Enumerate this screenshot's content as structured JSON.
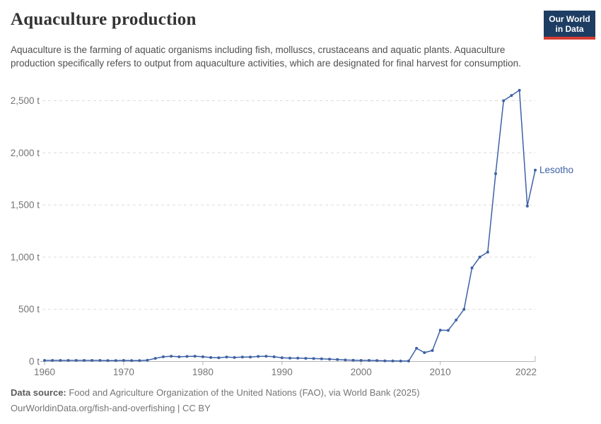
{
  "header": {
    "title": "Aquaculture production",
    "subtitle": "Aquaculture is the farming of aquatic organisms including fish, molluscs, crustaceans and aquatic plants. Aquaculture production specifically refers to output from aquaculture activities, which are designated for final harvest for consumption.",
    "logo": {
      "line1": "Our World",
      "line2": "in Data",
      "bg_color": "#1d3d63",
      "accent_color": "#d73c34"
    }
  },
  "chart_data": {
    "type": "line",
    "title": "Aquaculture production",
    "unit": "t",
    "xlabel": "",
    "ylabel": "",
    "xlim": [
      1960,
      2022
    ],
    "ylim": [
      0,
      2600
    ],
    "grid": "horizontal-dashed",
    "legend_position": "end-of-line",
    "x_ticks": [
      1960,
      1970,
      1980,
      1990,
      2000,
      2010,
      2022
    ],
    "y_ticks": [
      0,
      500,
      1000,
      1500,
      2000,
      2500
    ],
    "y_tick_suffix": " t",
    "series": [
      {
        "name": "Lesotho",
        "color": "#3d61a5",
        "x": [
          1960,
          1961,
          1962,
          1963,
          1964,
          1965,
          1966,
          1967,
          1968,
          1969,
          1970,
          1971,
          1972,
          1973,
          1974,
          1975,
          1976,
          1977,
          1978,
          1979,
          1980,
          1981,
          1982,
          1983,
          1984,
          1985,
          1986,
          1987,
          1988,
          1989,
          1990,
          1991,
          1992,
          1993,
          1994,
          1995,
          1996,
          1997,
          1998,
          1999,
          2000,
          2001,
          2002,
          2003,
          2004,
          2005,
          2006,
          2007,
          2008,
          2009,
          2010,
          2011,
          2012,
          2013,
          2014,
          2015,
          2016,
          2017,
          2018,
          2019,
          2020,
          2021,
          2022
        ],
        "values": [
          10,
          10,
          10,
          10,
          10,
          10,
          10,
          10,
          8,
          8,
          10,
          8,
          8,
          12,
          30,
          45,
          50,
          45,
          48,
          50,
          45,
          38,
          36,
          42,
          38,
          42,
          42,
          48,
          50,
          45,
          35,
          32,
          32,
          30,
          28,
          26,
          22,
          18,
          14,
          12,
          10,
          10,
          8,
          6,
          5,
          4,
          4,
          126,
          85,
          105,
          300,
          298,
          397,
          500,
          897,
          1001,
          1049,
          1800,
          2500,
          2550,
          2600,
          1490,
          1835
        ]
      }
    ],
    "colors": {
      "gridline": "#dcdcdc",
      "axis": "#b3b3b3",
      "tick_label": "#757575"
    }
  },
  "footer": {
    "source_label": "Data source:",
    "source_text": " Food and Agriculture Organization of the United Nations (FAO), via World Bank (2025)",
    "license_line": "OurWorldinData.org/fish-and-overfishing | CC BY"
  }
}
